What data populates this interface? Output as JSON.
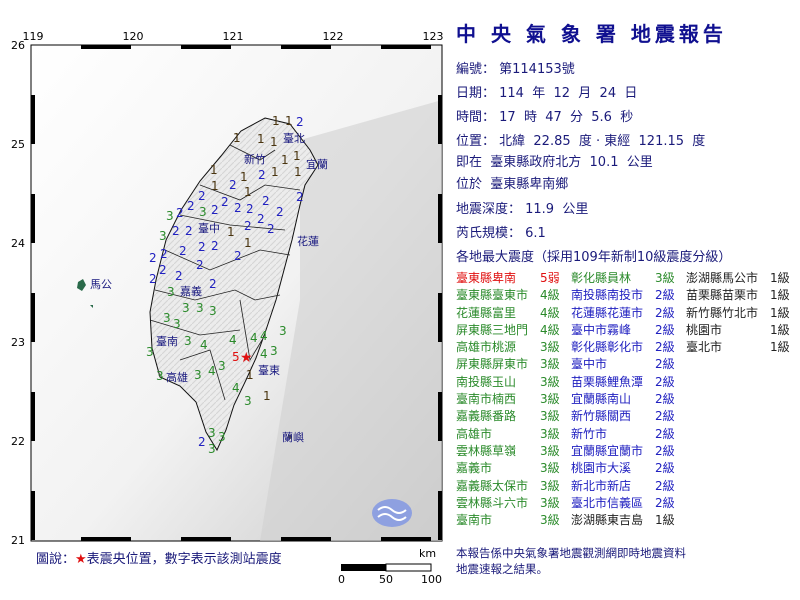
{
  "report": {
    "title": "中 央 氣 象 署 地震報告",
    "number": "編號： 第114153號",
    "date": "日期： 114  年  12  月  24  日",
    "time": "時間： 17  時  47  分  5.6  秒",
    "location": "位置： 北緯  22.85  度 · 東經  121.15  度",
    "relative": "即在  臺東縣政府北方  10.1  公里",
    "region": "位於  臺東縣卑南鄉",
    "depth": "地震深度： 11.9  公里",
    "magnitude": "芮氏規模： 6.1",
    "intensity_header": "各地最大震度（採用109年新制10級震度分級）"
  },
  "intensities": [
    [
      {
        "place": "臺東縣卑南",
        "level": "5弱",
        "c": 5
      },
      {
        "place": "臺東縣臺東市",
        "level": "4級",
        "c": 4
      },
      {
        "place": "花蓮縣富里",
        "level": "4級",
        "c": 4
      },
      {
        "place": "屏東縣三地門",
        "level": "4級",
        "c": 4
      },
      {
        "place": "高雄市桃源",
        "level": "3級",
        "c": 3
      },
      {
        "place": "屏東縣屏東市",
        "level": "3級",
        "c": 3
      },
      {
        "place": "南投縣玉山",
        "level": "3級",
        "c": 3
      },
      {
        "place": "臺南市楠西",
        "level": "3級",
        "c": 3
      },
      {
        "place": "嘉義縣番路",
        "level": "3級",
        "c": 3
      },
      {
        "place": "高雄市",
        "level": "3級",
        "c": 3
      },
      {
        "place": "雲林縣草嶺",
        "level": "3級",
        "c": 3
      },
      {
        "place": "嘉義市",
        "level": "3級",
        "c": 3
      },
      {
        "place": "嘉義縣太保市",
        "level": "3級",
        "c": 3
      },
      {
        "place": "雲林縣斗六市",
        "level": "3級",
        "c": 3
      },
      {
        "place": "臺南市",
        "level": "3級",
        "c": 3
      }
    ],
    [
      {
        "place": "彰化縣員林",
        "level": "3級",
        "c": 3
      },
      {
        "place": "南投縣南投市",
        "level": "2級",
        "c": 2
      },
      {
        "place": "花蓮縣花蓮市",
        "level": "2級",
        "c": 2
      },
      {
        "place": "臺中市霧峰",
        "level": "2級",
        "c": 2
      },
      {
        "place": "彰化縣彰化市",
        "level": "2級",
        "c": 2
      },
      {
        "place": "臺中市",
        "level": "2級",
        "c": 2
      },
      {
        "place": "苗栗縣鯉魚潭",
        "level": "2級",
        "c": 2
      },
      {
        "place": "宜蘭縣南山",
        "level": "2級",
        "c": 2
      },
      {
        "place": "新竹縣關西",
        "level": "2級",
        "c": 2
      },
      {
        "place": "新竹市",
        "level": "2級",
        "c": 2
      },
      {
        "place": "宜蘭縣宜蘭市",
        "level": "2級",
        "c": 2
      },
      {
        "place": "桃園市大溪",
        "level": "2級",
        "c": 2
      },
      {
        "place": "新北市新店",
        "level": "2級",
        "c": 2
      },
      {
        "place": "臺北市信義區",
        "level": "2級",
        "c": 2
      },
      {
        "place": "澎湖縣東吉島",
        "level": "1級",
        "c": 1
      }
    ],
    [
      {
        "place": "澎湖縣馬公市",
        "level": "1級",
        "c": 1
      },
      {
        "place": "苗栗縣苗栗市",
        "level": "1級",
        "c": 1
      },
      {
        "place": "新竹縣竹北市",
        "level": "1級",
        "c": 1
      },
      {
        "place": "桃園市",
        "level": "1級",
        "c": 1
      },
      {
        "place": "臺北市",
        "level": "1級",
        "c": 1
      }
    ]
  ],
  "map": {
    "lon_ticks": [
      "119",
      "120",
      "121",
      "122",
      "123"
    ],
    "lat_ticks": [
      "26",
      "25",
      "24",
      "23",
      "22",
      "21"
    ],
    "cities": [
      "臺北",
      "新竹",
      "宜蘭",
      "臺中",
      "花蓮",
      "馬公",
      "嘉義",
      "臺南",
      "高雄",
      "臺東",
      "蘭嶼"
    ],
    "epicenter_label": "5",
    "station_values": [
      "1",
      "1",
      "1",
      "1",
      "1",
      "1",
      "1",
      "2",
      "1",
      "1",
      "2",
      "2",
      "1",
      "1",
      "1",
      "1",
      "2",
      "2",
      "2",
      "2",
      "2",
      "2",
      "2",
      "2",
      "2",
      "2",
      "2",
      "2",
      "1",
      "1",
      "2",
      "2",
      "2",
      "2",
      "2",
      "2",
      "2",
      "3",
      "2",
      "2",
      "2",
      "3",
      "2",
      "2",
      "3",
      "2",
      "3",
      "3",
      "3",
      "3",
      "3",
      "3",
      "3",
      "2",
      "3",
      "3",
      "4",
      "4",
      "3",
      "4",
      "4",
      "3",
      "3",
      "4",
      "4",
      "3",
      "3",
      "3",
      "3",
      "2",
      "3",
      "4",
      "1",
      "1"
    ],
    "colors": {
      "1": "#4a3510",
      "2": "#2020c0",
      "3": "#2a8a2a",
      "4": "#2a8a2a",
      "5": "#e01010"
    },
    "scale_unit": "km",
    "scale_labels": [
      "0",
      "50",
      "100"
    ]
  },
  "legend": {
    "prefix": "圖說：",
    "star": "★",
    "text": "表震央位置，數字表示該測站震度"
  },
  "note": [
    "本報告係中央氣象署地震觀測網即時地震資料",
    "地震速報之結果。"
  ]
}
